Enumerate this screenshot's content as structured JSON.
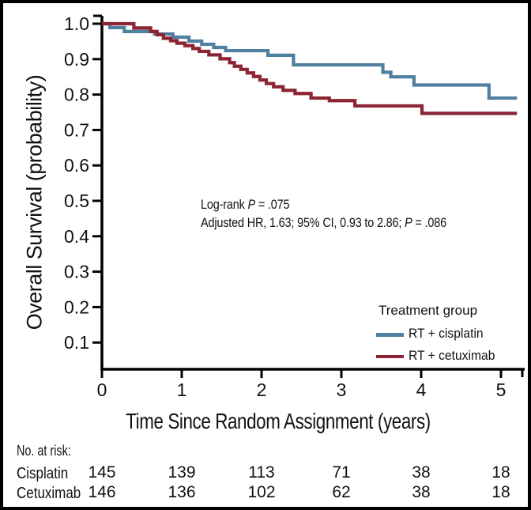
{
  "chart_data": {
    "type": "line",
    "style": "kaplan-meier-step",
    "title": "",
    "xlabel": "Time Since Random Assignment (years)",
    "ylabel": "Overall Survival (probability)",
    "x_tick_labels": [
      "0",
      "1",
      "2",
      "3",
      "4",
      "5"
    ],
    "y_tick_labels": [
      "1.0",
      "0.9",
      "0.8",
      "0.7",
      "0.6",
      "0.5",
      "0.4",
      "0.3",
      "0.2",
      "0.1"
    ],
    "xlim": [
      0,
      5.3
    ],
    "ylim": [
      0.03,
      1.0
    ],
    "grid": false,
    "annotations": [
      {
        "pre": "Log-rank ",
        "italic": "P",
        "post": " = .075"
      },
      {
        "pre": "Adjusted HR, 1.63; 95% CI, 0.93 to 2.86; ",
        "italic": "P",
        "post": " = .086"
      }
    ],
    "legend": {
      "title": "Treatment group",
      "position": "inside lower right"
    },
    "series": [
      {
        "name": "RT + cisplatin",
        "color": "#50809f",
        "points": [
          [
            0,
            1.0
          ],
          [
            0.1,
            0.989
          ],
          [
            0.28,
            0.978
          ],
          [
            0.66,
            0.971
          ],
          [
            0.89,
            0.962
          ],
          [
            1.09,
            0.951
          ],
          [
            1.25,
            0.942
          ],
          [
            1.4,
            0.933
          ],
          [
            1.55,
            0.924
          ],
          [
            2.08,
            0.911
          ],
          [
            2.4,
            0.884
          ],
          [
            3.52,
            0.863
          ],
          [
            3.62,
            0.85
          ],
          [
            3.91,
            0.827
          ],
          [
            4.85,
            0.79
          ],
          [
            5.2,
            0.79
          ]
        ]
      },
      {
        "name": "RT + cetuximab",
        "color": "#8c2433",
        "points": [
          [
            0,
            1.0
          ],
          [
            0.4,
            0.988
          ],
          [
            0.61,
            0.978
          ],
          [
            0.69,
            0.969
          ],
          [
            0.77,
            0.959
          ],
          [
            0.86,
            0.952
          ],
          [
            0.94,
            0.945
          ],
          [
            1.04,
            0.938
          ],
          [
            1.14,
            0.93
          ],
          [
            1.22,
            0.922
          ],
          [
            1.34,
            0.912
          ],
          [
            1.48,
            0.901
          ],
          [
            1.6,
            0.89
          ],
          [
            1.66,
            0.88
          ],
          [
            1.74,
            0.871
          ],
          [
            1.82,
            0.861
          ],
          [
            1.9,
            0.851
          ],
          [
            1.98,
            0.841
          ],
          [
            2.06,
            0.831
          ],
          [
            2.15,
            0.822
          ],
          [
            2.27,
            0.812
          ],
          [
            2.42,
            0.803
          ],
          [
            2.62,
            0.79
          ],
          [
            2.85,
            0.783
          ],
          [
            3.17,
            0.768
          ],
          [
            4.01,
            0.747
          ],
          [
            5.2,
            0.747
          ]
        ]
      }
    ],
    "at_risk": {
      "header": "No. at risk:",
      "time_points": [
        0,
        1,
        2,
        3,
        4,
        5
      ],
      "rows": [
        {
          "label": "Cisplatin",
          "values": [
            145,
            139,
            113,
            71,
            38,
            18
          ]
        },
        {
          "label": "Cetuximab",
          "values": [
            146,
            136,
            102,
            62,
            38,
            18
          ]
        }
      ]
    }
  }
}
